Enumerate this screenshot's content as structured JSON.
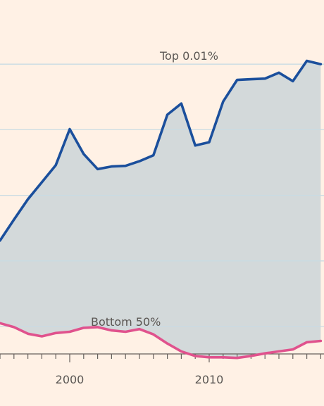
{
  "chart_data": {
    "type": "line",
    "title": "",
    "xlabel": "",
    "ylabel": "",
    "xlim": [
      1995,
      2018
    ],
    "x_ticks": [
      2000,
      2010
    ],
    "grid": true,
    "fill_between_series": true,
    "colors": {
      "background": "#FFF1E5",
      "band_fill": "#D3D9DA",
      "grid": "#C9DBE3",
      "top_line": "#1B4F9C",
      "bottom_line": "#E0528D",
      "axis": "#66605C"
    },
    "series": [
      {
        "name": "Top 0.01%",
        "x": [
          1995,
          1996,
          1997,
          1998,
          1999,
          2000,
          2001,
          2002,
          2003,
          2004,
          2005,
          2006,
          2007,
          2008,
          2009,
          2010,
          2011,
          2012,
          2013,
          2014,
          2015,
          2016,
          2017,
          2018
        ],
        "values": [
          23.1,
          26.3,
          29.4,
          32.0,
          34.6,
          40.1,
          36.3,
          34.0,
          34.4,
          34.5,
          35.2,
          36.1,
          42.3,
          44.0,
          37.6,
          38.1,
          44.3,
          47.6,
          47.7,
          47.8,
          48.7,
          47.4,
          50.5,
          50.0
        ]
      },
      {
        "name": "Bottom 50%",
        "x": [
          1995,
          1996,
          1997,
          1998,
          1999,
          2000,
          2001,
          2002,
          2003,
          2004,
          2005,
          2006,
          2007,
          2008,
          2009,
          2010,
          2011,
          2012,
          2013,
          2014,
          2015,
          2016,
          2017,
          2018
        ],
        "values": [
          10.5,
          9.9,
          8.9,
          8.5,
          9.0,
          9.2,
          9.8,
          9.9,
          9.4,
          9.2,
          9.6,
          8.8,
          7.4,
          6.2,
          5.5,
          5.3,
          5.3,
          5.2,
          5.5,
          5.9,
          6.2,
          6.5,
          7.6,
          7.8
        ]
      }
    ]
  }
}
